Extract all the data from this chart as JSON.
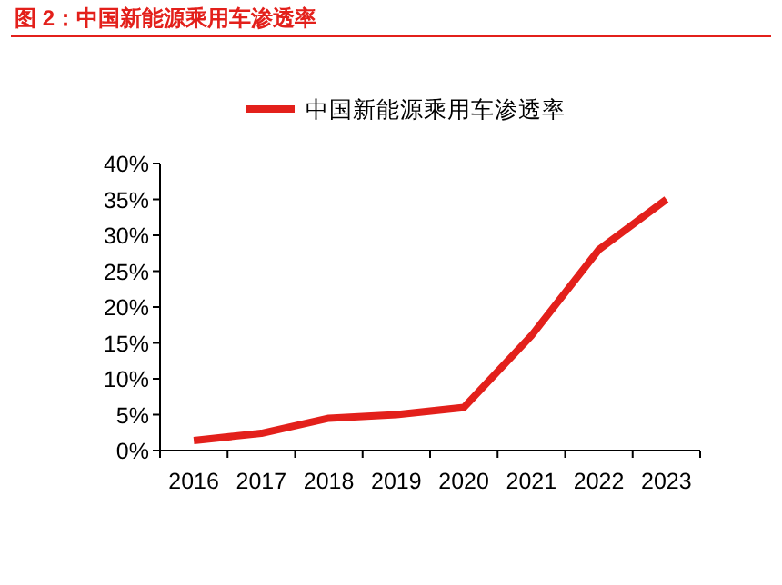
{
  "chart_data": {
    "type": "line",
    "title": "图 2：中国新能源乘用车渗透率",
    "categories": [
      "2016",
      "2017",
      "2018",
      "2019",
      "2020",
      "2021",
      "2022",
      "2023"
    ],
    "series": [
      {
        "name": "中国新能源乘用车渗透率",
        "color": "#e3201b",
        "values": [
          1.4,
          2.4,
          4.5,
          5.0,
          6.0,
          16.0,
          28.0,
          35.0
        ]
      }
    ],
    "ylim": [
      0,
      40
    ],
    "yticks": [
      {
        "value": 0,
        "label": "0%"
      },
      {
        "value": 5,
        "label": "5%"
      },
      {
        "value": 10,
        "label": "10%"
      },
      {
        "value": 15,
        "label": "15%"
      },
      {
        "value": 20,
        "label": "20%"
      },
      {
        "value": 25,
        "label": "25%"
      },
      {
        "value": 30,
        "label": "30%"
      },
      {
        "value": 35,
        "label": "35%"
      },
      {
        "value": 40,
        "label": "40%"
      }
    ],
    "legend": "top",
    "line_style": "solid"
  }
}
